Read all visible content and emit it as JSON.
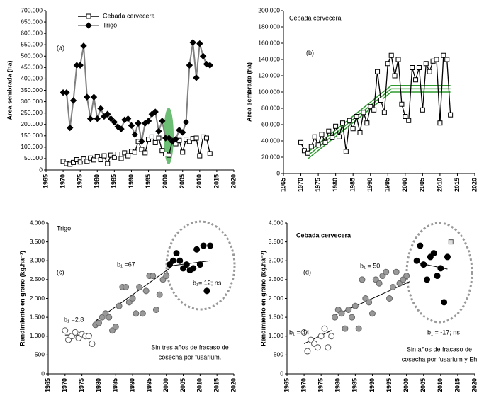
{
  "chart_data": [
    {
      "type": "line",
      "y_label": "Area sembrada (ha)",
      "annotations": [
        "(a)"
      ],
      "legend": "upper center",
      "xlim": [
        1965,
        2020
      ],
      "xticks": [
        1965,
        1970,
        1975,
        1980,
        1985,
        1990,
        1995,
        2000,
        2005,
        2010,
        2015,
        2020
      ],
      "ylim": [
        0,
        700000
      ],
      "yticks": [
        0,
        {
          "value": 50000,
          "label": "50.000"
        },
        {
          "value": 100000,
          "label": "100.000"
        },
        {
          "value": 150000,
          "label": "150.000"
        },
        {
          "value": 200000,
          "label": "200.000"
        },
        {
          "value": 250000,
          "label": "250.000"
        },
        {
          "value": 300000,
          "label": "300.000"
        },
        {
          "value": 350000,
          "label": "350.000"
        },
        {
          "value": 400000,
          "label": "400.000"
        },
        {
          "value": 450000,
          "label": "450.000"
        },
        {
          "value": 500000,
          "label": "500.000"
        },
        {
          "value": 550000,
          "label": "550.000"
        },
        {
          "value": 600000,
          "label": "600.000"
        },
        {
          "value": 650000,
          "label": "650.000"
        },
        {
          "value": 700000,
          "label": "700.000"
        }
      ],
      "x": [
        1970,
        1971,
        1972,
        1973,
        1974,
        1975,
        1976,
        1977,
        1978,
        1979,
        1980,
        1981,
        1982,
        1983,
        1984,
        1985,
        1986,
        1987,
        1988,
        1989,
        1990,
        1991,
        1992,
        1993,
        1994,
        1995,
        1996,
        1997,
        1998,
        1999,
        2000,
        2001,
        2002,
        2003,
        2004,
        2005,
        2006,
        2007,
        2008,
        2009,
        2010,
        2011,
        2012,
        2013
      ],
      "series": [
        {
          "name": "Cebada cervecera",
          "color": "#000000",
          "marker": "square",
          "marker_fill": "#ffffff",
          "values": [
            38000,
            28000,
            25000,
            33000,
            45000,
            35000,
            48000,
            38000,
            52000,
            44000,
            58000,
            45000,
            62000,
            27000,
            65000,
            55000,
            70000,
            50000,
            75000,
            62000,
            82000,
            78000,
            125000,
            90000,
            75000,
            135000,
            145000,
            120000,
            140000,
            85000,
            70000,
            65000,
            130000,
            115000,
            130000,
            78000,
            135000,
            125000,
            138000,
            140000,
            62000,
            145000,
            140000,
            72000
          ]
        },
        {
          "name": "Trigo",
          "color": "#808080",
          "marker": "diamond",
          "marker_fill": "#000000",
          "values": [
            340000,
            340000,
            185000,
            305000,
            460000,
            460000,
            545000,
            320000,
            225000,
            320000,
            225000,
            270000,
            235000,
            245000,
            225000,
            210000,
            190000,
            180000,
            220000,
            225000,
            195000,
            155000,
            205000,
            125000,
            205000,
            215000,
            245000,
            255000,
            170000,
            215000,
            140000,
            140000,
            125000,
            135000,
            175000,
            165000,
            210000,
            460000,
            560000,
            405000,
            555000,
            500000,
            465000,
            460000
          ]
        }
      ]
    },
    {
      "type": "line",
      "y_label": "Area sembrada (ha)",
      "annotations": [
        "Cebada cervecera",
        "(b)"
      ],
      "xlim": [
        1965,
        2020
      ],
      "xticks": [
        1965,
        1970,
        1975,
        1980,
        1985,
        1990,
        1995,
        2000,
        2005,
        2010,
        2015,
        2020
      ],
      "ylim": [
        0,
        200000
      ],
      "yticks": [
        0,
        {
          "value": 20000,
          "label": "20.000"
        },
        {
          "value": 40000,
          "label": "40.000"
        },
        {
          "value": 60000,
          "label": "60.000"
        },
        {
          "value": 80000,
          "label": "80.000"
        },
        {
          "value": 100000,
          "label": "100.000"
        },
        {
          "value": 120000,
          "label": "120.000"
        },
        {
          "value": 140000,
          "label": "140.000"
        },
        {
          "value": 160000,
          "label": "160.000"
        },
        {
          "value": 180000,
          "label": "180.000"
        },
        {
          "value": 200000,
          "label": "200.000"
        }
      ],
      "x": [
        1970,
        1971,
        1972,
        1973,
        1974,
        1975,
        1976,
        1977,
        1978,
        1979,
        1980,
        1981,
        1982,
        1983,
        1984,
        1985,
        1986,
        1987,
        1988,
        1989,
        1990,
        1991,
        1992,
        1993,
        1994,
        1995,
        1996,
        1997,
        1998,
        1999,
        2000,
        2001,
        2002,
        2003,
        2004,
        2005,
        2006,
        2007,
        2008,
        2009,
        2010,
        2011,
        2012,
        2013
      ],
      "series": [
        {
          "color": "#000000",
          "marker": "square",
          "marker_fill": "#ffffff",
          "values": [
            38000,
            28000,
            25000,
            33000,
            45000,
            35000,
            48000,
            38000,
            52000,
            44000,
            58000,
            45000,
            62000,
            27000,
            65000,
            55000,
            70000,
            50000,
            75000,
            62000,
            82000,
            78000,
            125000,
            90000,
            75000,
            135000,
            145000,
            120000,
            140000,
            85000,
            70000,
            65000,
            130000,
            115000,
            130000,
            78000,
            135000,
            125000,
            138000,
            140000,
            62000,
            145000,
            140000,
            72000
          ]
        }
      ],
      "lines": [
        {
          "color": "#2e9a2e",
          "x": [
            1972,
            1996,
            2013
          ],
          "values": [
            26000,
            108000,
            108000
          ]
        },
        {
          "color": "#2e9a2e",
          "x": [
            1972,
            1996,
            2013
          ],
          "values": [
            22000,
            104000,
            104000
          ]
        },
        {
          "color": "#2e9a2e",
          "x": [
            1972,
            1996,
            2013
          ],
          "values": [
            18000,
            100000,
            100000
          ]
        }
      ]
    },
    {
      "type": "scatter",
      "y_label": "Rendimiento en grano (kg.ha⁻¹)",
      "annotations": [
        "Trigo",
        "(c)",
        "b₁ =2.8",
        "b₁ =67",
        "b₁= 12; ns",
        "Sin tres años de fracaso de",
        "cosecha por fusarium."
      ],
      "xlim": [
        1965,
        2020
      ],
      "xticks": [
        1965,
        1970,
        1975,
        1980,
        1985,
        1990,
        1995,
        2000,
        2005,
        2010,
        2015,
        2020
      ],
      "ylim": [
        0,
        4000
      ],
      "yticks": [
        0,
        500,
        {
          "value": 1000,
          "label": "1.000"
        },
        {
          "value": 1500,
          "label": "1.500"
        },
        {
          "value": 2000,
          "label": "2.000"
        },
        {
          "value": 2500,
          "label": "2.500"
        },
        {
          "value": 3000,
          "label": "3.000"
        },
        {
          "value": 3500,
          "label": "3.500"
        },
        {
          "value": 4000,
          "label": "4.000"
        }
      ],
      "series": [
        {
          "color": "#555555",
          "marker": "circle",
          "marker_fill": "#ffffff",
          "x": [
            1970,
            1971,
            1972,
            1973,
            1974,
            1975,
            1976,
            1977,
            1978
          ],
          "values": [
            1150,
            900,
            1000,
            1100,
            950,
            1050,
            1000,
            1000,
            800
          ]
        },
        {
          "color": "#666666",
          "marker": "circle",
          "marker_fill": "#999999",
          "x": [
            1979,
            1980,
            1981,
            1982,
            1983,
            1984,
            1985,
            1986,
            1987,
            1988,
            1989,
            1990,
            1991,
            1992,
            1993,
            1994,
            1995,
            1996,
            1997,
            1998,
            1999,
            2000
          ],
          "values": [
            1300,
            1350,
            1500,
            1600,
            1500,
            1150,
            1250,
            1800,
            2300,
            2300,
            1900,
            2000,
            1600,
            2300,
            1600,
            2200,
            2600,
            2600,
            1700,
            2100,
            2500,
            2600
          ]
        },
        {
          "color": "#000000",
          "marker": "circle",
          "marker_fill": "#000000",
          "x": [
            2001,
            2002,
            2003,
            2004,
            2005,
            2006,
            2007,
            2008,
            2009,
            2010,
            2011,
            2012,
            2013
          ],
          "values": [
            2900,
            3000,
            3200,
            3000,
            2800,
            2900,
            2750,
            2800,
            3300,
            2900,
            3400,
            2200,
            3400
          ]
        }
      ],
      "lines": [
        {
          "color": "#000000",
          "x": [
            1970,
            1978
          ],
          "values": [
            1030,
            1030
          ]
        },
        {
          "color": "#000000",
          "x": [
            1979,
            2001
          ],
          "values": [
            1400,
            2800
          ]
        },
        {
          "color": "#000000",
          "x": [
            2000,
            2013
          ],
          "values": [
            2850,
            3000
          ]
        }
      ]
    },
    {
      "type": "scatter",
      "y_label": "Rendimiento en grano (kg.ha⁻¹)",
      "annotations": [
        "Cebada cervecera",
        "(d)",
        "b₁ = 50",
        "b₁ = 44",
        "b₁ = -17; ns",
        "Sin años de fracaso de",
        "cosecha por fusarium y Eh"
      ],
      "xlim": [
        1965,
        2020
      ],
      "xticks": [
        1965,
        1970,
        1975,
        1980,
        1985,
        1990,
        1995,
        2000,
        2005,
        2010,
        2015,
        2020
      ],
      "ylim": [
        0,
        4000
      ],
      "yticks": [
        0,
        500,
        {
          "value": 1000,
          "label": "1.000"
        },
        {
          "value": 1500,
          "label": "1.500"
        },
        {
          "value": 2000,
          "label": "2.000"
        },
        {
          "value": 2500,
          "label": "2.500"
        },
        {
          "value": 3000,
          "label": "3.000"
        },
        {
          "value": 3500,
          "label": "3.500"
        },
        {
          "value": 4000,
          "label": "4.000"
        }
      ],
      "series": [
        {
          "color": "#555555",
          "marker": "circle",
          "marker_fill": "#ffffff",
          "x": [
            1970,
            1971,
            1972,
            1973,
            1974,
            1975,
            1976,
            1977,
            1978
          ],
          "values": [
            1100,
            600,
            900,
            800,
            700,
            1000,
            1200,
            700,
            1000
          ]
        },
        {
          "color": "#666666",
          "marker": "circle",
          "marker_fill": "#999999",
          "x": [
            1979,
            1980,
            1981,
            1982,
            1983,
            1984,
            1985,
            1986,
            1987,
            1988,
            1989,
            1990,
            1991,
            1992,
            1993,
            1994,
            1995,
            1996,
            1997,
            1998,
            1999,
            2000
          ],
          "values": [
            1500,
            1700,
            1600,
            1200,
            1700,
            1500,
            1800,
            1200,
            2500,
            2000,
            1900,
            1600,
            2500,
            2400,
            2600,
            2700,
            2000,
            2300,
            2700,
            2400,
            2500,
            2600
          ]
        },
        {
          "color": "#000000",
          "marker": "circle",
          "marker_fill": "#000000",
          "x": [
            2003,
            2004,
            2005,
            2006,
            2007,
            2008,
            2009,
            2010,
            2011,
            2012
          ],
          "values": [
            3000,
            3400,
            2900,
            2500,
            3100,
            3200,
            2600,
            2800,
            1900,
            3100
          ]
        },
        {
          "color": "#555555",
          "marker": "square",
          "marker_fill": "#dddddd",
          "x": [
            2013
          ],
          "values": [
            3500
          ]
        }
      ],
      "lines": [
        {
          "color": "#000000",
          "x": [
            1970,
            1978
          ],
          "values": [
            800,
            1150
          ]
        },
        {
          "color": "#000000",
          "x": [
            1979,
            2001
          ],
          "values": [
            1550,
            2450
          ]
        },
        {
          "color": "#000000",
          "x": [
            2003,
            2012
          ],
          "values": [
            2950,
            2780
          ]
        }
      ]
    }
  ]
}
